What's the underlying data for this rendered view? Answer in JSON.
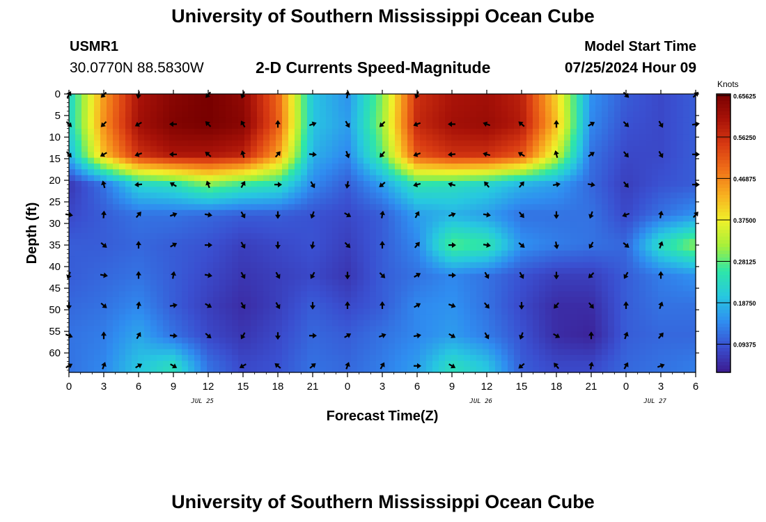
{
  "header": {
    "title": "University of Southern Mississippi Ocean Cube",
    "station": "USMR1",
    "coordinates": "30.0770N  88.5830W",
    "subtitle": "2-D Currents Speed-Magnitude",
    "model_start_label": "Model Start Time",
    "model_start_value": "07/25/2024 Hour 09"
  },
  "footer": {
    "title": "University of Southern Mississippi Ocean Cube"
  },
  "colorbar": {
    "units": "Knots",
    "colors": [
      "#3b1a8f",
      "#3a4fd0",
      "#2f8df0",
      "#27c8e0",
      "#2ee6a8",
      "#a6f03a",
      "#f0f02a",
      "#f8b020",
      "#f07018",
      "#d83a12",
      "#a81208",
      "#780000"
    ]
  },
  "chart_data": {
    "type": "heatmap",
    "title": "2-D Currents Speed-Magnitude",
    "xlabel": "Forecast Time(Z)",
    "ylabel": "Depth (ft)",
    "x_ticks": [
      "0",
      "3",
      "6",
      "9",
      "12",
      "15",
      "18",
      "21",
      "0",
      "3",
      "6",
      "9",
      "12",
      "15",
      "18",
      "21",
      "0",
      "3",
      "6"
    ],
    "date_labels": [
      {
        "label": "JUL 25",
        "hour_index": 11.5
      },
      {
        "label": "JUL 26",
        "hour_index": 35.5
      },
      {
        "label": "JUL 27",
        "hour_index": 50.5
      }
    ],
    "y_ticks": [
      0,
      5,
      10,
      15,
      20,
      25,
      30,
      35,
      40,
      45,
      50,
      55,
      60
    ],
    "ylim": [
      0,
      64.5
    ],
    "xlim_hours": [
      0,
      54
    ],
    "colorbar_ticks": [
      0.09375,
      0.1875,
      0.28125,
      0.375,
      0.46875,
      0.5625,
      0.65625
    ],
    "colorbar_tick_labels": [
      "0.09375",
      "0.18750",
      "0.28125",
      "0.37500",
      "0.46875",
      "0.56250",
      "0.65625"
    ],
    "vmin": 0.03,
    "vmax": 0.66,
    "grid_hours": [
      0,
      3,
      6,
      9,
      12,
      15,
      18,
      21,
      24,
      27,
      30,
      33,
      36,
      39,
      42,
      45,
      48,
      51,
      54
    ],
    "grid_depths": [
      0,
      7,
      14,
      21,
      28,
      35,
      42,
      49,
      56,
      63
    ],
    "speed": [
      [
        0.22,
        0.45,
        0.6,
        0.64,
        0.66,
        0.63,
        0.5,
        0.2,
        0.15,
        0.3,
        0.56,
        0.6,
        0.61,
        0.58,
        0.4,
        0.15,
        0.1,
        0.08,
        0.1
      ],
      [
        0.22,
        0.46,
        0.61,
        0.65,
        0.66,
        0.64,
        0.51,
        0.2,
        0.16,
        0.31,
        0.57,
        0.61,
        0.62,
        0.59,
        0.42,
        0.14,
        0.09,
        0.08,
        0.1
      ],
      [
        0.18,
        0.42,
        0.56,
        0.6,
        0.6,
        0.58,
        0.45,
        0.18,
        0.14,
        0.28,
        0.52,
        0.56,
        0.56,
        0.52,
        0.35,
        0.12,
        0.08,
        0.08,
        0.1
      ],
      [
        0.06,
        0.12,
        0.22,
        0.24,
        0.3,
        0.26,
        0.24,
        0.14,
        0.1,
        0.16,
        0.25,
        0.24,
        0.22,
        0.18,
        0.16,
        0.11,
        0.07,
        0.09,
        0.1
      ],
      [
        0.08,
        0.1,
        0.12,
        0.12,
        0.11,
        0.1,
        0.1,
        0.09,
        0.08,
        0.1,
        0.16,
        0.18,
        0.16,
        0.12,
        0.12,
        0.12,
        0.08,
        0.12,
        0.15
      ],
      [
        0.1,
        0.1,
        0.11,
        0.1,
        0.09,
        0.07,
        0.08,
        0.09,
        0.07,
        0.1,
        0.14,
        0.28,
        0.26,
        0.15,
        0.13,
        0.12,
        0.11,
        0.24,
        0.31
      ],
      [
        0.1,
        0.11,
        0.12,
        0.1,
        0.08,
        0.06,
        0.07,
        0.08,
        0.06,
        0.1,
        0.12,
        0.14,
        0.12,
        0.09,
        0.07,
        0.07,
        0.1,
        0.13,
        0.15
      ],
      [
        0.11,
        0.12,
        0.14,
        0.1,
        0.07,
        0.05,
        0.07,
        0.1,
        0.08,
        0.1,
        0.14,
        0.15,
        0.12,
        0.08,
        0.05,
        0.05,
        0.1,
        0.12,
        0.12
      ],
      [
        0.12,
        0.13,
        0.17,
        0.12,
        0.08,
        0.06,
        0.08,
        0.11,
        0.1,
        0.12,
        0.14,
        0.16,
        0.13,
        0.09,
        0.05,
        0.04,
        0.1,
        0.11,
        0.11
      ],
      [
        0.12,
        0.14,
        0.2,
        0.24,
        0.12,
        0.08,
        0.09,
        0.12,
        0.11,
        0.13,
        0.16,
        0.24,
        0.2,
        0.1,
        0.08,
        0.08,
        0.11,
        0.12,
        0.13
      ]
    ],
    "vectors": [
      {
        "h": 0,
        "d": 0.2,
        "a": 30
      },
      {
        "h": 3,
        "d": 0.2,
        "a": 225
      },
      {
        "h": 6,
        "d": 0.2,
        "a": 190
      },
      {
        "h": 12,
        "d": 0.2,
        "a": 220
      },
      {
        "h": 15,
        "d": 0.2,
        "a": 200
      },
      {
        "h": 24,
        "d": 0.2,
        "a": 10
      },
      {
        "h": 30,
        "d": 0.2,
        "a": 200
      },
      {
        "h": 48,
        "d": 0.2,
        "a": 135
      },
      {
        "h": 54,
        "d": 0.2,
        "a": 45
      },
      {
        "h": 0,
        "d": 7,
        "a": 135
      },
      {
        "h": 3,
        "d": 7,
        "a": 225
      },
      {
        "h": 6,
        "d": 7,
        "a": 240
      },
      {
        "h": 9,
        "d": 7,
        "a": 270
      },
      {
        "h": 12,
        "d": 7,
        "a": 315
      },
      {
        "h": 15,
        "d": 7,
        "a": 330
      },
      {
        "h": 18,
        "d": 7,
        "a": 0
      },
      {
        "h": 21,
        "d": 7,
        "a": 70
      },
      {
        "h": 24,
        "d": 7,
        "a": 150
      },
      {
        "h": 27,
        "d": 7,
        "a": 225
      },
      {
        "h": 30,
        "d": 7,
        "a": 250
      },
      {
        "h": 33,
        "d": 7,
        "a": 270
      },
      {
        "h": 36,
        "d": 7,
        "a": 290
      },
      {
        "h": 39,
        "d": 7,
        "a": 310
      },
      {
        "h": 42,
        "d": 7,
        "a": 0
      },
      {
        "h": 45,
        "d": 7,
        "a": 60
      },
      {
        "h": 48,
        "d": 7,
        "a": 135
      },
      {
        "h": 51,
        "d": 7,
        "a": 150
      },
      {
        "h": 54,
        "d": 7,
        "a": 80
      },
      {
        "h": 0,
        "d": 14,
        "a": 140
      },
      {
        "h": 3,
        "d": 14,
        "a": 240
      },
      {
        "h": 6,
        "d": 14,
        "a": 250
      },
      {
        "h": 9,
        "d": 14,
        "a": 270
      },
      {
        "h": 12,
        "d": 14,
        "a": 310
      },
      {
        "h": 15,
        "d": 14,
        "a": 345
      },
      {
        "h": 18,
        "d": 14,
        "a": 40
      },
      {
        "h": 21,
        "d": 14,
        "a": 95
      },
      {
        "h": 24,
        "d": 14,
        "a": 160
      },
      {
        "h": 27,
        "d": 14,
        "a": 220
      },
      {
        "h": 30,
        "d": 14,
        "a": 250
      },
      {
        "h": 33,
        "d": 14,
        "a": 265
      },
      {
        "h": 36,
        "d": 14,
        "a": 285
      },
      {
        "h": 39,
        "d": 14,
        "a": 300
      },
      {
        "h": 42,
        "d": 14,
        "a": 345
      },
      {
        "h": 45,
        "d": 14,
        "a": 55
      },
      {
        "h": 48,
        "d": 14,
        "a": 140
      },
      {
        "h": 51,
        "d": 14,
        "a": 150
      },
      {
        "h": 54,
        "d": 14,
        "a": 90
      },
      {
        "h": 3,
        "d": 21,
        "a": 345
      },
      {
        "h": 6,
        "d": 21,
        "a": 265
      },
      {
        "h": 9,
        "d": 21,
        "a": 300
      },
      {
        "h": 12,
        "d": 21,
        "a": 340
      },
      {
        "h": 15,
        "d": 21,
        "a": 30
      },
      {
        "h": 18,
        "d": 21,
        "a": 90
      },
      {
        "h": 21,
        "d": 21,
        "a": 150
      },
      {
        "h": 24,
        "d": 21,
        "a": 190
      },
      {
        "h": 27,
        "d": 21,
        "a": 230
      },
      {
        "h": 30,
        "d": 21,
        "a": 255
      },
      {
        "h": 33,
        "d": 21,
        "a": 285
      },
      {
        "h": 36,
        "d": 21,
        "a": 320
      },
      {
        "h": 39,
        "d": 21,
        "a": 40
      },
      {
        "h": 42,
        "d": 21,
        "a": 80
      },
      {
        "h": 45,
        "d": 21,
        "a": 100
      },
      {
        "h": 48,
        "d": 21,
        "a": 140
      },
      {
        "h": 54,
        "d": 21,
        "a": 90
      },
      {
        "h": 0,
        "d": 28,
        "a": 100
      },
      {
        "h": 3,
        "d": 28,
        "a": 5
      },
      {
        "h": 6,
        "d": 28,
        "a": 40
      },
      {
        "h": 9,
        "d": 28,
        "a": 70
      },
      {
        "h": 12,
        "d": 28,
        "a": 100
      },
      {
        "h": 15,
        "d": 28,
        "a": 150
      },
      {
        "h": 18,
        "d": 28,
        "a": 180
      },
      {
        "h": 21,
        "d": 28,
        "a": 200
      },
      {
        "h": 24,
        "d": 28,
        "a": 120
      },
      {
        "h": 27,
        "d": 28,
        "a": 10
      },
      {
        "h": 30,
        "d": 28,
        "a": 30
      },
      {
        "h": 33,
        "d": 28,
        "a": 70
      },
      {
        "h": 36,
        "d": 28,
        "a": 100
      },
      {
        "h": 39,
        "d": 28,
        "a": 140
      },
      {
        "h": 42,
        "d": 28,
        "a": 180
      },
      {
        "h": 45,
        "d": 28,
        "a": 200
      },
      {
        "h": 48,
        "d": 28,
        "a": 250
      },
      {
        "h": 51,
        "d": 28,
        "a": 10
      },
      {
        "h": 54,
        "d": 28,
        "a": 40
      },
      {
        "h": 3,
        "d": 35,
        "a": 130
      },
      {
        "h": 6,
        "d": 35,
        "a": 0
      },
      {
        "h": 9,
        "d": 35,
        "a": 60
      },
      {
        "h": 12,
        "d": 35,
        "a": 90
      },
      {
        "h": 15,
        "d": 35,
        "a": 150
      },
      {
        "h": 18,
        "d": 35,
        "a": 180
      },
      {
        "h": 21,
        "d": 35,
        "a": 190
      },
      {
        "h": 24,
        "d": 35,
        "a": 135
      },
      {
        "h": 27,
        "d": 35,
        "a": 0
      },
      {
        "h": 30,
        "d": 35,
        "a": 40
      },
      {
        "h": 33,
        "d": 35,
        "a": 90
      },
      {
        "h": 36,
        "d": 35,
        "a": 100
      },
      {
        "h": 39,
        "d": 35,
        "a": 130
      },
      {
        "h": 42,
        "d": 35,
        "a": 170
      },
      {
        "h": 45,
        "d": 35,
        "a": 210
      },
      {
        "h": 48,
        "d": 35,
        "a": 130
      },
      {
        "h": 51,
        "d": 35,
        "a": 20
      },
      {
        "h": 0,
        "d": 42,
        "a": 200
      },
      {
        "h": 3,
        "d": 42,
        "a": 100
      },
      {
        "h": 6,
        "d": 42,
        "a": 0
      },
      {
        "h": 9,
        "d": 42,
        "a": 10
      },
      {
        "h": 12,
        "d": 42,
        "a": 100
      },
      {
        "h": 15,
        "d": 42,
        "a": 150
      },
      {
        "h": 18,
        "d": 42,
        "a": 150
      },
      {
        "h": 21,
        "d": 42,
        "a": 210
      },
      {
        "h": 24,
        "d": 42,
        "a": 180
      },
      {
        "h": 27,
        "d": 42,
        "a": 135
      },
      {
        "h": 30,
        "d": 42,
        "a": 60
      },
      {
        "h": 33,
        "d": 42,
        "a": 90
      },
      {
        "h": 36,
        "d": 42,
        "a": 150
      },
      {
        "h": 39,
        "d": 42,
        "a": 150
      },
      {
        "h": 42,
        "d": 42,
        "a": 180
      },
      {
        "h": 45,
        "d": 42,
        "a": 225
      },
      {
        "h": 48,
        "d": 42,
        "a": 210
      },
      {
        "h": 51,
        "d": 42,
        "a": 0
      },
      {
        "h": 0,
        "d": 49,
        "a": 180
      },
      {
        "h": 3,
        "d": 49,
        "a": 130
      },
      {
        "h": 6,
        "d": 49,
        "a": 10
      },
      {
        "h": 9,
        "d": 49,
        "a": 80
      },
      {
        "h": 12,
        "d": 49,
        "a": 120
      },
      {
        "h": 15,
        "d": 49,
        "a": 150
      },
      {
        "h": 18,
        "d": 49,
        "a": 150
      },
      {
        "h": 21,
        "d": 49,
        "a": 180
      },
      {
        "h": 24,
        "d": 49,
        "a": 0
      },
      {
        "h": 27,
        "d": 49,
        "a": 0
      },
      {
        "h": 30,
        "d": 49,
        "a": 60
      },
      {
        "h": 33,
        "d": 49,
        "a": 110
      },
      {
        "h": 36,
        "d": 49,
        "a": 140
      },
      {
        "h": 39,
        "d": 49,
        "a": 180
      },
      {
        "h": 42,
        "d": 49,
        "a": 220
      },
      {
        "h": 45,
        "d": 49,
        "a": 140
      },
      {
        "h": 48,
        "d": 49,
        "a": 0
      },
      {
        "h": 51,
        "d": 49,
        "a": 20
      },
      {
        "h": 0,
        "d": 56,
        "a": 110
      },
      {
        "h": 3,
        "d": 56,
        "a": 0
      },
      {
        "h": 6,
        "d": 56,
        "a": 30
      },
      {
        "h": 9,
        "d": 56,
        "a": 95
      },
      {
        "h": 12,
        "d": 56,
        "a": 130
      },
      {
        "h": 15,
        "d": 56,
        "a": 210
      },
      {
        "h": 18,
        "d": 56,
        "a": 180
      },
      {
        "h": 21,
        "d": 56,
        "a": 90
      },
      {
        "h": 24,
        "d": 56,
        "a": 60
      },
      {
        "h": 27,
        "d": 56,
        "a": 70
      },
      {
        "h": 30,
        "d": 56,
        "a": 80
      },
      {
        "h": 33,
        "d": 56,
        "a": 120
      },
      {
        "h": 36,
        "d": 56,
        "a": 150
      },
      {
        "h": 39,
        "d": 56,
        "a": 200
      },
      {
        "h": 42,
        "d": 56,
        "a": 120
      },
      {
        "h": 45,
        "d": 56,
        "a": 0
      },
      {
        "h": 48,
        "d": 56,
        "a": 20
      },
      {
        "h": 51,
        "d": 56,
        "a": 40
      },
      {
        "h": 0,
        "d": 63,
        "a": 60
      },
      {
        "h": 3,
        "d": 63,
        "a": 20
      },
      {
        "h": 6,
        "d": 63,
        "a": 60
      },
      {
        "h": 9,
        "d": 63,
        "a": 120
      },
      {
        "h": 15,
        "d": 63,
        "a": 240
      },
      {
        "h": 18,
        "d": 63,
        "a": 310
      },
      {
        "h": 21,
        "d": 63,
        "a": 50
      },
      {
        "h": 24,
        "d": 63,
        "a": 20
      },
      {
        "h": 27,
        "d": 63,
        "a": 30
      },
      {
        "h": 30,
        "d": 63,
        "a": 90
      },
      {
        "h": 33,
        "d": 63,
        "a": 120
      },
      {
        "h": 39,
        "d": 63,
        "a": 230
      },
      {
        "h": 42,
        "d": 63,
        "a": 320
      },
      {
        "h": 45,
        "d": 63,
        "a": 10
      },
      {
        "h": 48,
        "d": 63,
        "a": 30
      },
      {
        "h": 51,
        "d": 63,
        "a": 70
      }
    ]
  }
}
